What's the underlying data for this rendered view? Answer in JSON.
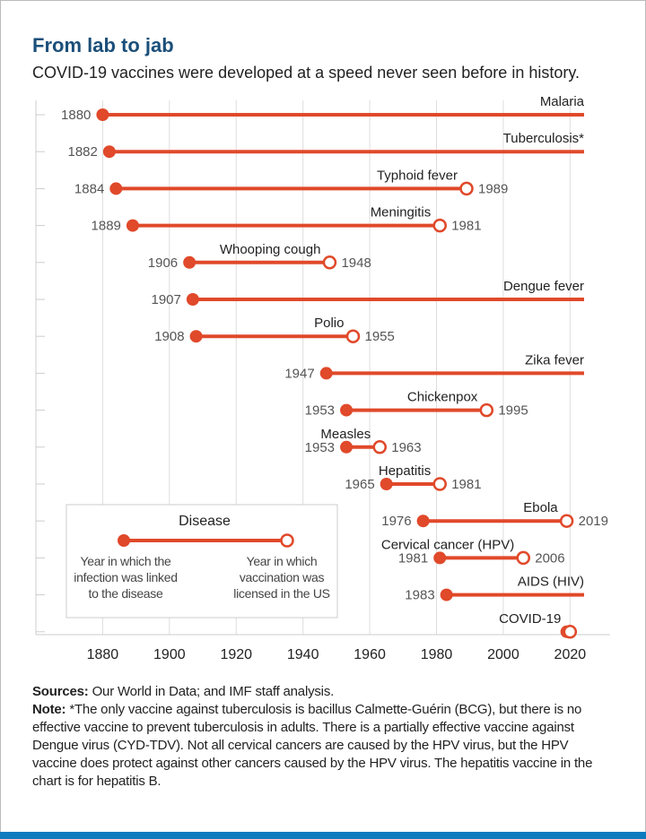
{
  "chart_data": {
    "type": "dumbbell",
    "title": "From lab to jab",
    "subtitle": "COVID-19 vaccines were developed at a speed never seen before in history.",
    "categories": [
      "Malaria",
      "Tuberculosis*",
      "Typhoid fever",
      "Meningitis",
      "Whooping cough",
      "Dengue fever",
      "Polio",
      "Zika fever",
      "Chickenpox",
      "Measles",
      "Hepatitis",
      "Ebola",
      "Cervical cancer (HPV)",
      "AIDS (HIV)",
      "COVID-19"
    ],
    "series": [
      {
        "name": "Year in which the infection was linked to the disease",
        "color": "#e0492a",
        "values": [
          1880,
          1882,
          1884,
          1889,
          1906,
          1907,
          1908,
          1947,
          1953,
          1953,
          1965,
          1976,
          1981,
          1983,
          2019
        ],
        "value_labels": [
          "1880",
          "1882",
          "1884",
          "1889",
          "1906",
          "1907",
          "1908",
          "1947",
          "1953",
          "1953",
          "1965",
          "1976",
          "1981",
          "1983",
          null
        ]
      },
      {
        "name": "Year in which vaccination was licensed in the US",
        "color": "#e0492a",
        "values": [
          null,
          null,
          1989,
          1981,
          1948,
          null,
          1955,
          null,
          1995,
          1963,
          1981,
          2019,
          2006,
          null,
          2020
        ],
        "value_labels": [
          null,
          null,
          "1989",
          "1981",
          "1948",
          null,
          "1955",
          null,
          "1995",
          "1963",
          "1981",
          "2019",
          "2006",
          null,
          null
        ]
      }
    ],
    "legend_title": "Disease",
    "xlim": [
      1860,
      2032
    ],
    "xticks": [
      1880,
      1900,
      1920,
      1940,
      1960,
      1980,
      2000,
      2020
    ],
    "grid": true,
    "notes": [
      {
        "label": "Sources:",
        "text": "Our World in Data; and IMF staff analysis."
      },
      {
        "label": "Note:",
        "text": "*The only vaccine against tuberculosis is bacillus Calmette-Guérin (BCG), but there is no effective vaccine to prevent tuberculosis in adults. There is a partially effective vaccine against Dengue virus (CYD-TDV). Not all cervical cancers are caused by the HPV virus, but the HPV vaccine does protect against other cancers caused by the HPV virus. The hepatitis vaccine in the chart is for hepatitis B."
      }
    ]
  }
}
